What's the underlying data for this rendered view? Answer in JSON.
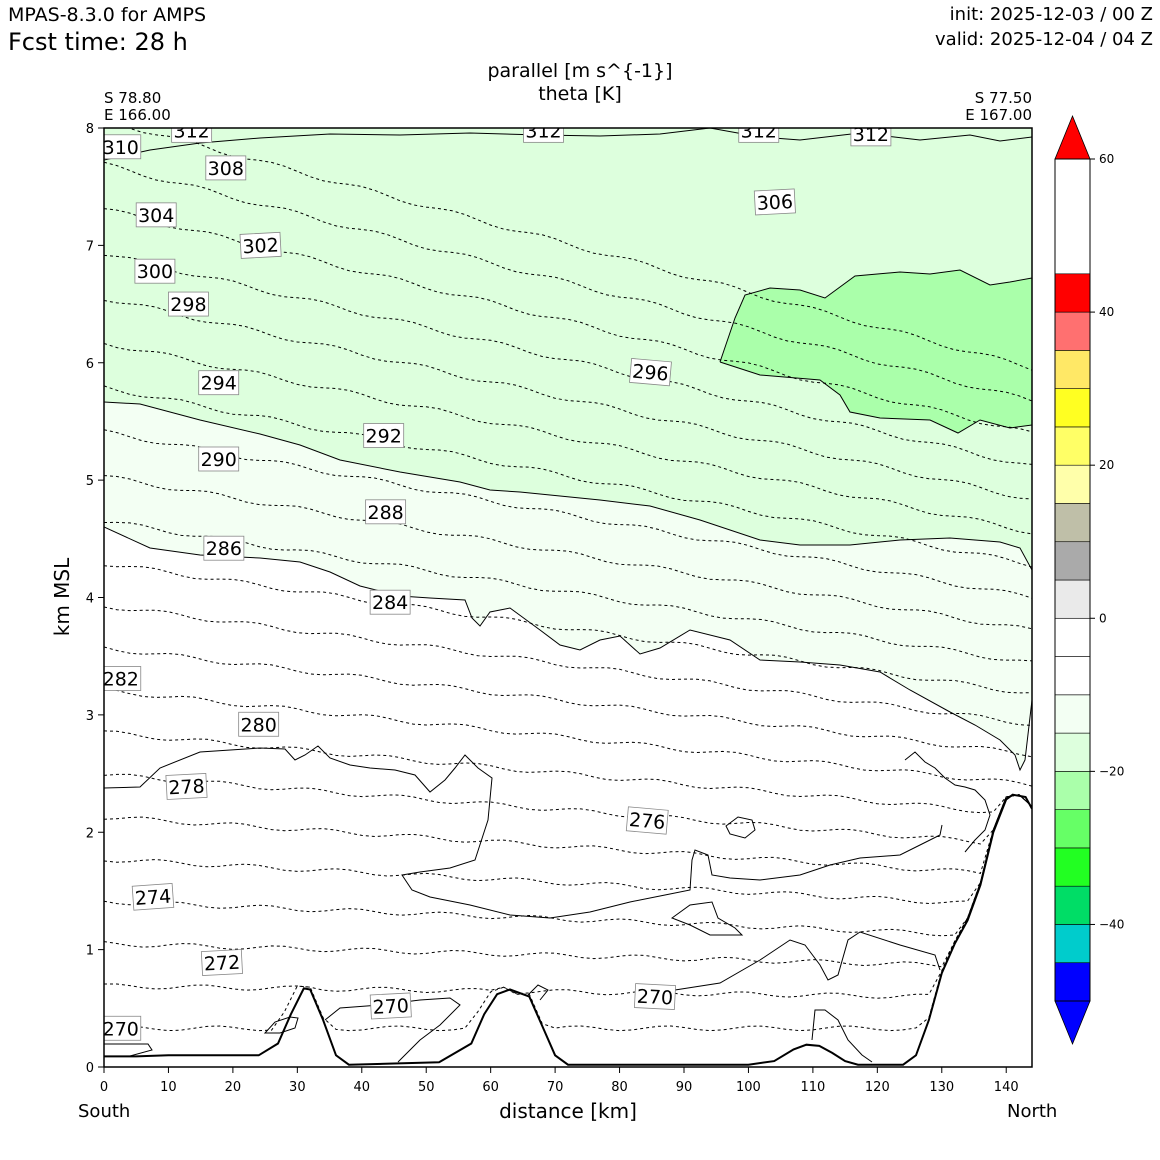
{
  "header": {
    "model": "MPAS-8.3.0 for AMPS",
    "fcst": "Fcst time:   28 h",
    "init": "init: 2025-12-03 / 00 Z",
    "valid": "valid: 2025-12-04 / 04 Z"
  },
  "chart_data": {
    "type": "cross-section",
    "title": "parallel [m s^{-1}]",
    "subtitle": "theta [K]",
    "xlabel": "distance [km]",
    "ylabel": "km MSL",
    "xlim": [
      0,
      144
    ],
    "ylim": [
      0,
      8
    ],
    "xticks": [
      0,
      10,
      20,
      30,
      40,
      50,
      60,
      70,
      80,
      90,
      100,
      110,
      120,
      130,
      140
    ],
    "yticks": [
      0,
      1,
      2,
      3,
      4,
      5,
      6,
      7,
      8
    ],
    "endpoints": {
      "left": {
        "lat": "S 78.80",
        "lon": "E 166.00",
        "label": "South"
      },
      "right": {
        "lat": "S 77.50",
        "lon": "E 167.00",
        "label": "North"
      }
    },
    "colorbar": {
      "levels": [
        -50,
        -45,
        -40,
        -35,
        -30,
        -25,
        -20,
        -15,
        -10,
        -5,
        0,
        5,
        10,
        15,
        20,
        25,
        30,
        35,
        40,
        45,
        50,
        55,
        60
      ],
      "colors": [
        "#0000ff",
        "#00cccc",
        "#00dd66",
        "#22ff22",
        "#66ff66",
        "#aaffaa",
        "#ddffdd",
        "#f3fff3",
        "#ffffff",
        "#ffffff",
        "#eaeaea",
        "#aaaaaa",
        "#bfbfa8",
        "#ffffaa",
        "#ffff66",
        "#ffff22",
        "#ffe866",
        "#ff7070",
        "#ff0000"
      ],
      "tick_values": [
        -40,
        -20,
        0,
        20,
        40,
        60
      ],
      "tick_labels": [
        "−40",
        "−20",
        "0",
        "20",
        "40",
        "60"
      ],
      "under_color": "#0000ff",
      "over_color": "#ff0000"
    },
    "wind_bands": [
      {
        "level": -5,
        "color": "#f3fff3"
      },
      {
        "level": -10,
        "color": "#ddffdd"
      },
      {
        "level": -15,
        "color": "#aaffaa"
      }
    ],
    "theta_levels": [
      270,
      272,
      274,
      276,
      278,
      280,
      282,
      284,
      286,
      288,
      290,
      292,
      294,
      296,
      298,
      300,
      302,
      304,
      306,
      308,
      310,
      312
    ],
    "theta_labels": [
      {
        "text": "270",
        "x": 2.6,
        "z": 0.33,
        "rot": 0
      },
      {
        "text": "270",
        "x": 44.5,
        "z": 0.52,
        "rot": -3
      },
      {
        "text": "270",
        "x": 85.5,
        "z": 0.6,
        "rot": 3
      },
      {
        "text": "272",
        "x": 18.3,
        "z": 0.89,
        "rot": -3
      },
      {
        "text": "274",
        "x": 7.6,
        "z": 1.45,
        "rot": -4
      },
      {
        "text": "276",
        "x": 84.3,
        "z": 2.1,
        "rot": 5
      },
      {
        "text": "278",
        "x": 12.8,
        "z": 2.39,
        "rot": -3
      },
      {
        "text": "280",
        "x": 24.0,
        "z": 2.92,
        "rot": 0
      },
      {
        "text": "282",
        "x": 2.6,
        "z": 3.31,
        "rot": 0
      },
      {
        "text": "284",
        "x": 44.4,
        "z": 3.96,
        "rot": 0
      },
      {
        "text": "286",
        "x": 18.6,
        "z": 4.42,
        "rot": 0
      },
      {
        "text": "288",
        "x": 43.7,
        "z": 4.73,
        "rot": 0
      },
      {
        "text": "290",
        "x": 17.8,
        "z": 5.18,
        "rot": 0
      },
      {
        "text": "292",
        "x": 43.4,
        "z": 5.38,
        "rot": 0
      },
      {
        "text": "294",
        "x": 17.8,
        "z": 5.83,
        "rot": 0
      },
      {
        "text": "296",
        "x": 84.8,
        "z": 5.92,
        "rot": 5
      },
      {
        "text": "298",
        "x": 13.1,
        "z": 6.5,
        "rot": 0
      },
      {
        "text": "300",
        "x": 7.9,
        "z": 6.78,
        "rot": 0
      },
      {
        "text": "302",
        "x": 24.3,
        "z": 7.0,
        "rot": -3
      },
      {
        "text": "304",
        "x": 8.1,
        "z": 7.26,
        "rot": 0
      },
      {
        "text": "306",
        "x": 104.1,
        "z": 7.37,
        "rot": -3
      },
      {
        "text": "308",
        "x": 18.9,
        "z": 7.66,
        "rot": 0
      },
      {
        "text": "310",
        "x": 2.6,
        "z": 7.84,
        "rot": 0
      },
      {
        "text": "312",
        "x": 13.6,
        "z": 7.98,
        "rot": 0
      },
      {
        "text": "312",
        "x": 68.2,
        "z": 7.98,
        "rot": 0
      },
      {
        "text": "312",
        "x": 101.6,
        "z": 7.98,
        "rot": 0
      },
      {
        "text": "312",
        "x": 119.0,
        "z": 7.95,
        "rot": 0
      }
    ],
    "terrain_height_km": [
      [
        0,
        0.09
      ],
      [
        5,
        0.09
      ],
      [
        10,
        0.1
      ],
      [
        20,
        0.1
      ],
      [
        24,
        0.1
      ],
      [
        27,
        0.2
      ],
      [
        29,
        0.45
      ],
      [
        31,
        0.67
      ],
      [
        32,
        0.66
      ],
      [
        34,
        0.4
      ],
      [
        36,
        0.1
      ],
      [
        38,
        0.02
      ],
      [
        45,
        0.03
      ],
      [
        52,
        0.04
      ],
      [
        57,
        0.2
      ],
      [
        59,
        0.45
      ],
      [
        61,
        0.62
      ],
      [
        63,
        0.66
      ],
      [
        66,
        0.6
      ],
      [
        68,
        0.35
      ],
      [
        70,
        0.1
      ],
      [
        72,
        0.02
      ],
      [
        100,
        0.02
      ],
      [
        104,
        0.05
      ],
      [
        107,
        0.15
      ],
      [
        109,
        0.19
      ],
      [
        111,
        0.18
      ],
      [
        113,
        0.12
      ],
      [
        115,
        0.05
      ],
      [
        117,
        0.02
      ],
      [
        124,
        0.02
      ],
      [
        126,
        0.1
      ],
      [
        128,
        0.4
      ],
      [
        130,
        0.8
      ],
      [
        132,
        1.05
      ],
      [
        134,
        1.25
      ],
      [
        136,
        1.55
      ],
      [
        138,
        2.0
      ],
      [
        140,
        2.28
      ],
      [
        141,
        2.32
      ],
      [
        143,
        2.3
      ],
      [
        144,
        2.2
      ]
    ]
  }
}
